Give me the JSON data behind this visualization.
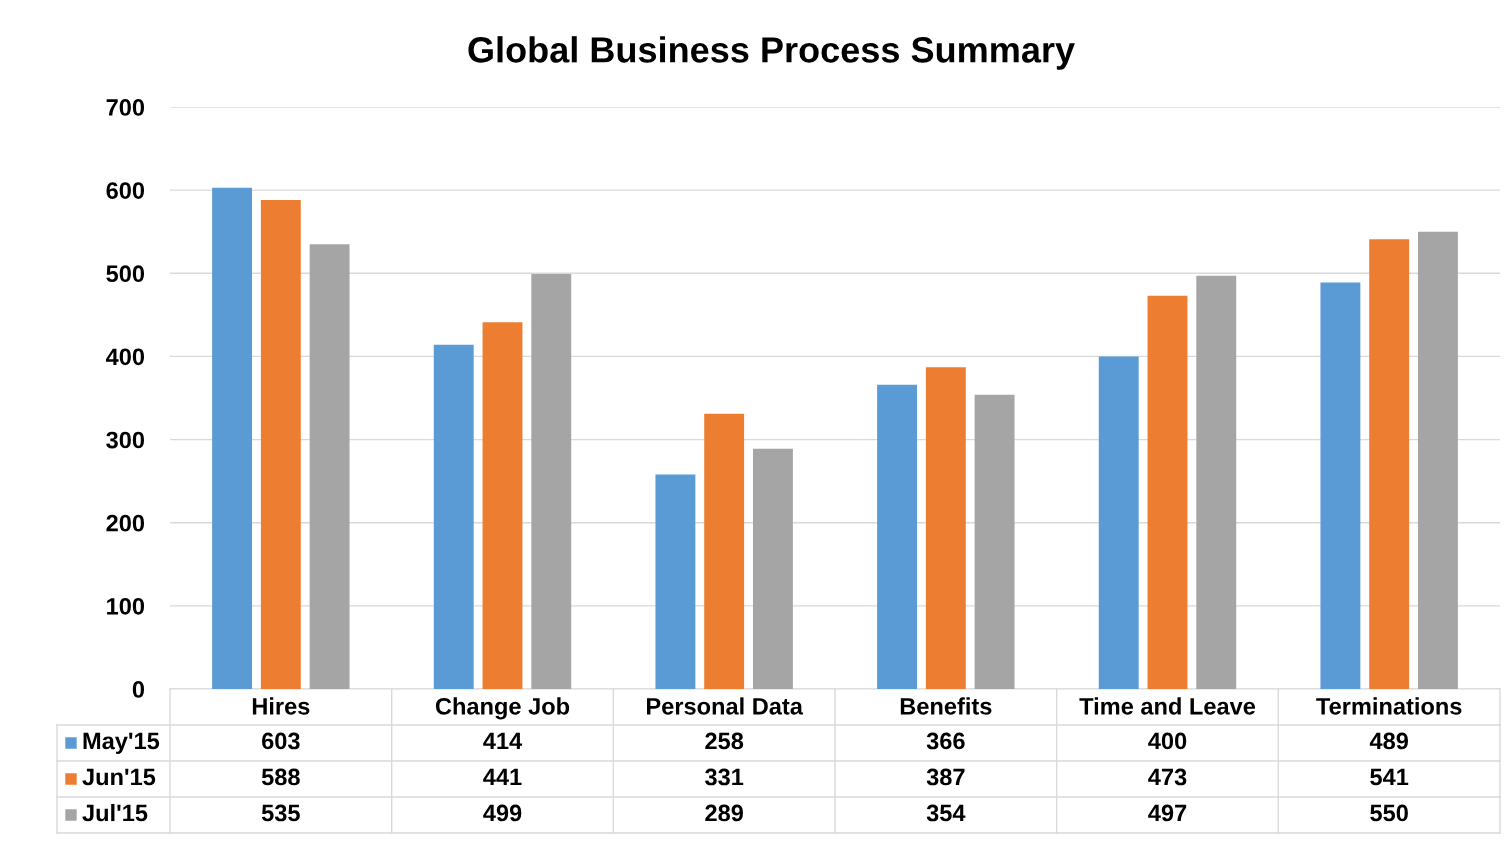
{
  "chart_data": {
    "type": "bar",
    "title": "Global Business Process Summary",
    "categories": [
      "Hires",
      "Change Job",
      "Personal Data",
      "Benefits",
      "Time and Leave",
      "Terminations"
    ],
    "series": [
      {
        "name": "May'15",
        "color": "#5b9bd5",
        "values": [
          603,
          414,
          258,
          366,
          400,
          489
        ]
      },
      {
        "name": "Jun'15",
        "color": "#ed7d31",
        "values": [
          588,
          441,
          331,
          387,
          473,
          541
        ]
      },
      {
        "name": "Jul'15",
        "color": "#a5a5a5",
        "values": [
          535,
          499,
          289,
          354,
          497,
          550
        ]
      }
    ],
    "ylim": [
      0,
      700
    ],
    "yticks": [
      0,
      100,
      200,
      300,
      400,
      500,
      600,
      700
    ],
    "grid": "y",
    "data_labels": true,
    "legend": "bottom left"
  }
}
